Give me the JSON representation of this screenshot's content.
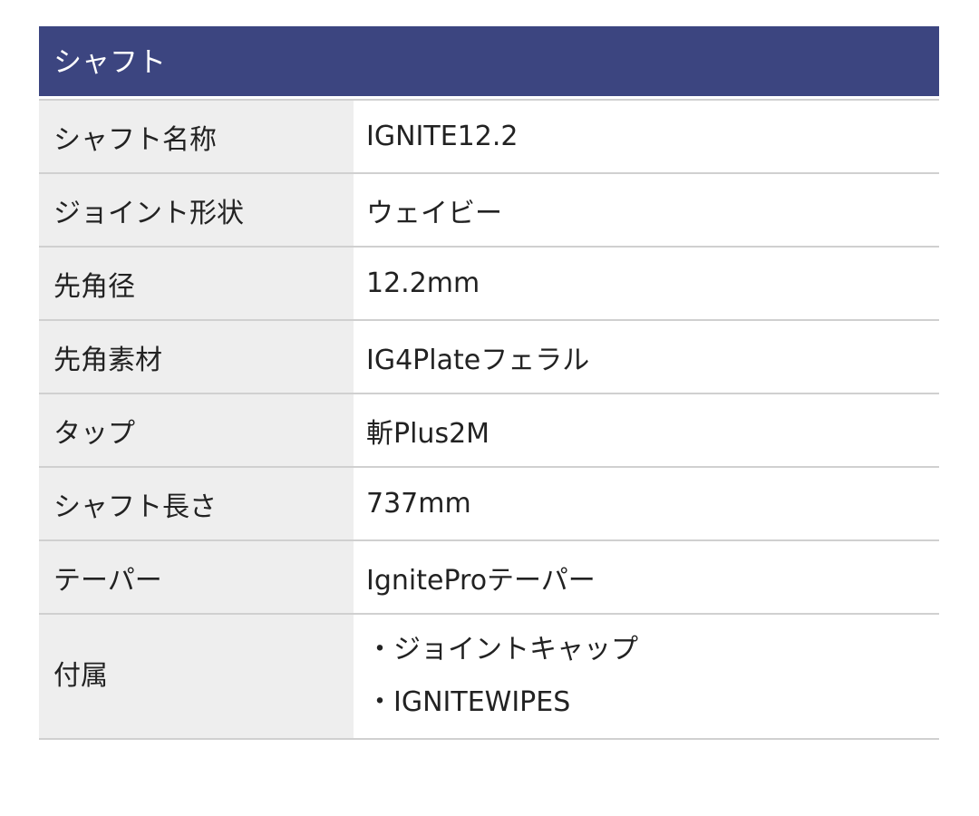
{
  "section_title": "シャフト",
  "colors": {
    "header_bg": "#3c4580",
    "label_bg": "#eeeeee"
  },
  "rows": [
    {
      "label": "シャフト名称",
      "value": "IGNITE12.2"
    },
    {
      "label": "ジョイント形状",
      "value": "ウェイビー"
    },
    {
      "label": "先角径",
      "value": "12.2mm"
    },
    {
      "label": "先角素材",
      "value": "IG4Plateフェラル"
    },
    {
      "label": "タップ",
      "value": "斬Plus2M"
    },
    {
      "label": "シャフト長さ",
      "value": "737mm"
    },
    {
      "label": "テーパー",
      "value": "IgniteProテーパー"
    },
    {
      "label": "付属",
      "values": [
        "・ジョイントキャップ",
        "・IGNITEWIPES"
      ]
    }
  ]
}
